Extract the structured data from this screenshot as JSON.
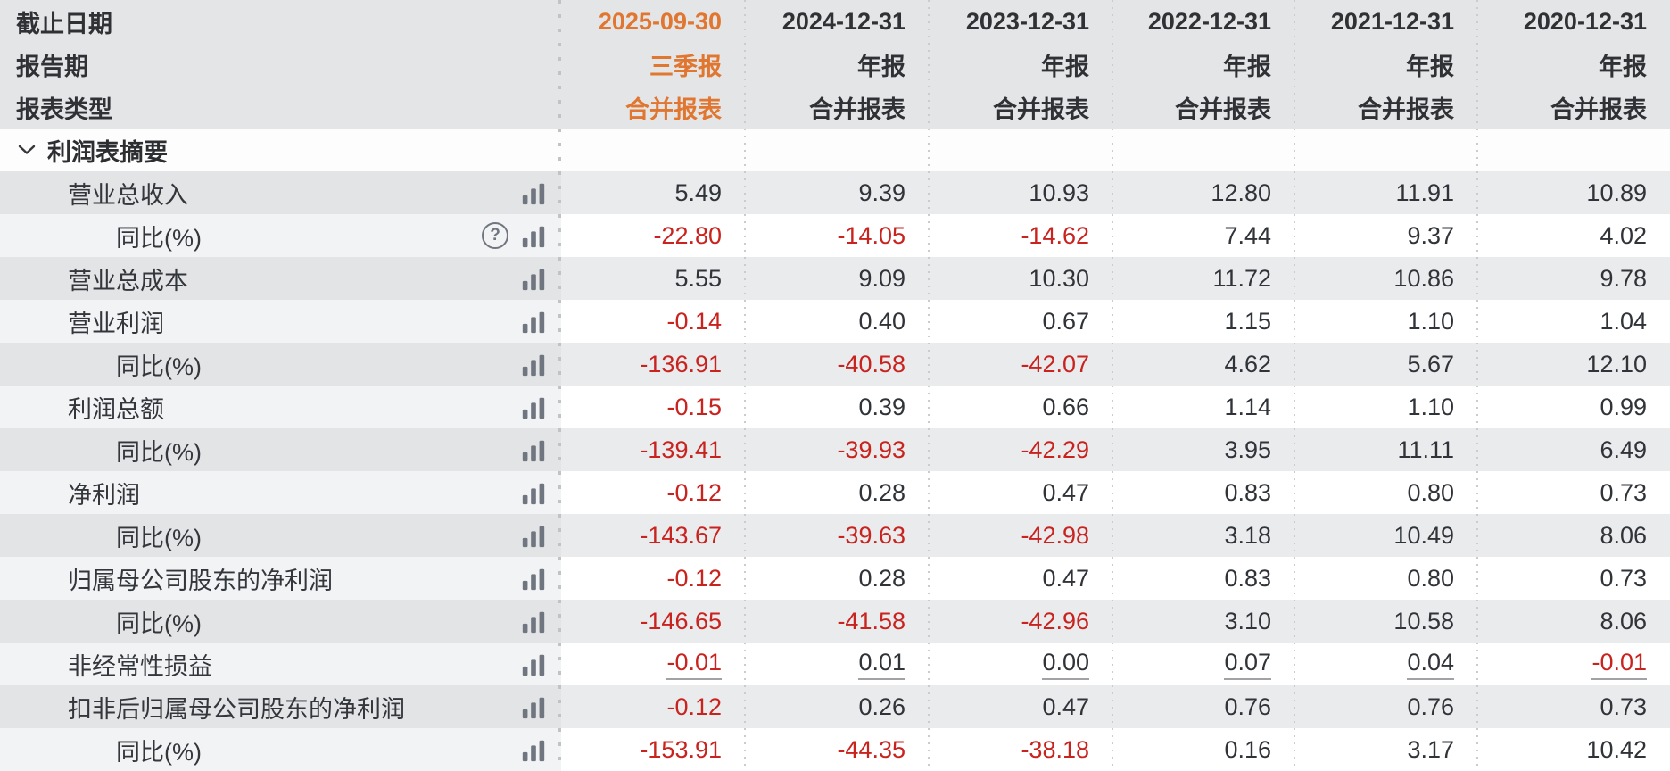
{
  "table": {
    "colors": {
      "accent_orange": "#e0762f",
      "negative_red": "#c9231f",
      "icon_gray": "#70767f",
      "header_bg": "#e4e5e7",
      "row_gray_bg": "#eaebed",
      "row_white_bg": "#ffffff"
    },
    "header_rows": [
      {
        "label": "截止日期",
        "values": [
          "2025-09-30",
          "2024-12-31",
          "2023-12-31",
          "2022-12-31",
          "2021-12-31",
          "2020-12-31"
        ]
      },
      {
        "label": "报告期",
        "values": [
          "三季报",
          "年报",
          "年报",
          "年报",
          "年报",
          "年报"
        ]
      },
      {
        "label": "报表类型",
        "values": [
          "合并报表",
          "合并报表",
          "合并报表",
          "合并报表",
          "合并报表",
          "合并报表"
        ]
      }
    ],
    "section": {
      "label": "利润表摘要",
      "chevron_icon": "chevron-down-icon",
      "expanded": true
    },
    "rows": [
      {
        "label": "营业总收入",
        "indent": 1,
        "icons": [
          "bar-chart"
        ],
        "values": [
          "5.49",
          "9.39",
          "10.93",
          "12.80",
          "11.91",
          "10.89"
        ]
      },
      {
        "label": "同比(%)",
        "indent": 2,
        "icons": [
          "question",
          "bar-chart"
        ],
        "values": [
          "-22.80",
          "-14.05",
          "-14.62",
          "7.44",
          "9.37",
          "4.02"
        ]
      },
      {
        "label": "营业总成本",
        "indent": 1,
        "icons": [
          "bar-chart"
        ],
        "values": [
          "5.55",
          "9.09",
          "10.30",
          "11.72",
          "10.86",
          "9.78"
        ]
      },
      {
        "label": "营业利润",
        "indent": 1,
        "icons": [
          "bar-chart"
        ],
        "values": [
          "-0.14",
          "0.40",
          "0.67",
          "1.15",
          "1.10",
          "1.04"
        ]
      },
      {
        "label": "同比(%)",
        "indent": 2,
        "icons": [
          "bar-chart"
        ],
        "values": [
          "-136.91",
          "-40.58",
          "-42.07",
          "4.62",
          "5.67",
          "12.10"
        ]
      },
      {
        "label": "利润总额",
        "indent": 1,
        "icons": [
          "bar-chart"
        ],
        "values": [
          "-0.15",
          "0.39",
          "0.66",
          "1.14",
          "1.10",
          "0.99"
        ]
      },
      {
        "label": "同比(%)",
        "indent": 2,
        "icons": [
          "bar-chart"
        ],
        "values": [
          "-139.41",
          "-39.93",
          "-42.29",
          "3.95",
          "11.11",
          "6.49"
        ]
      },
      {
        "label": "净利润",
        "indent": 1,
        "icons": [
          "bar-chart"
        ],
        "values": [
          "-0.12",
          "0.28",
          "0.47",
          "0.83",
          "0.80",
          "0.73"
        ]
      },
      {
        "label": "同比(%)",
        "indent": 2,
        "icons": [
          "bar-chart"
        ],
        "values": [
          "-143.67",
          "-39.63",
          "-42.98",
          "3.18",
          "10.49",
          "8.06"
        ]
      },
      {
        "label": "归属母公司股东的净利润",
        "indent": 1,
        "icons": [
          "bar-chart"
        ],
        "values": [
          "-0.12",
          "0.28",
          "0.47",
          "0.83",
          "0.80",
          "0.73"
        ]
      },
      {
        "label": "同比(%)",
        "indent": 2,
        "icons": [
          "bar-chart"
        ],
        "values": [
          "-146.65",
          "-41.58",
          "-42.96",
          "3.10",
          "10.58",
          "8.06"
        ]
      },
      {
        "label": "非经常性损益",
        "indent": 1,
        "icons": [
          "bar-chart"
        ],
        "underline": true,
        "values": [
          "-0.01",
          "0.01",
          "0.00",
          "0.07",
          "0.04",
          "-0.01"
        ]
      },
      {
        "label": "扣非后归属母公司股东的净利润",
        "indent": 1,
        "icons": [
          "bar-chart"
        ],
        "values": [
          "-0.12",
          "0.26",
          "0.47",
          "0.76",
          "0.76",
          "0.73"
        ]
      },
      {
        "label": "同比(%)",
        "indent": 2,
        "icons": [
          "bar-chart"
        ],
        "values": [
          "-153.91",
          "-44.35",
          "-38.18",
          "0.16",
          "3.17",
          "10.42"
        ]
      }
    ]
  }
}
